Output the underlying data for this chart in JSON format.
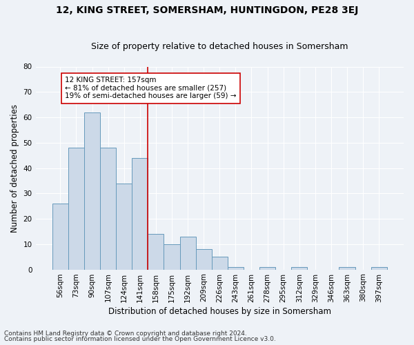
{
  "title1": "12, KING STREET, SOMERSHAM, HUNTINGDON, PE28 3EJ",
  "title2": "Size of property relative to detached houses in Somersham",
  "xlabel": "Distribution of detached houses by size in Somersham",
  "ylabel": "Number of detached properties",
  "bar_labels": [
    "56sqm",
    "73sqm",
    "90sqm",
    "107sqm",
    "124sqm",
    "141sqm",
    "158sqm",
    "175sqm",
    "192sqm",
    "209sqm",
    "226sqm",
    "243sqm",
    "261sqm",
    "278sqm",
    "295sqm",
    "312sqm",
    "329sqm",
    "346sqm",
    "363sqm",
    "380sqm",
    "397sqm"
  ],
  "bar_values": [
    26,
    48,
    62,
    48,
    34,
    44,
    14,
    10,
    13,
    8,
    5,
    1,
    0,
    1,
    0,
    1,
    0,
    0,
    1,
    0,
    1
  ],
  "bar_color": "#ccd9e8",
  "bar_edge_color": "#6699bb",
  "vline_x_index": 6,
  "vline_color": "#cc0000",
  "annotation_text": "12 KING STREET: 157sqm\n← 81% of detached houses are smaller (257)\n19% of semi-detached houses are larger (59) →",
  "annotation_box_color": "#ffffff",
  "annotation_box_edge": "#cc0000",
  "ylim": [
    0,
    80
  ],
  "yticks": [
    0,
    10,
    20,
    30,
    40,
    50,
    60,
    70,
    80
  ],
  "footer1": "Contains HM Land Registry data © Crown copyright and database right 2024.",
  "footer2": "Contains public sector information licensed under the Open Government Licence v3.0.",
  "background_color": "#eef2f7",
  "plot_background": "#eef2f7",
  "grid_color": "#ffffff",
  "title1_fontsize": 10,
  "title2_fontsize": 9,
  "xlabel_fontsize": 8.5,
  "ylabel_fontsize": 8.5,
  "tick_fontsize": 7.5,
  "annotation_fontsize": 7.5,
  "footer_fontsize": 6.5
}
